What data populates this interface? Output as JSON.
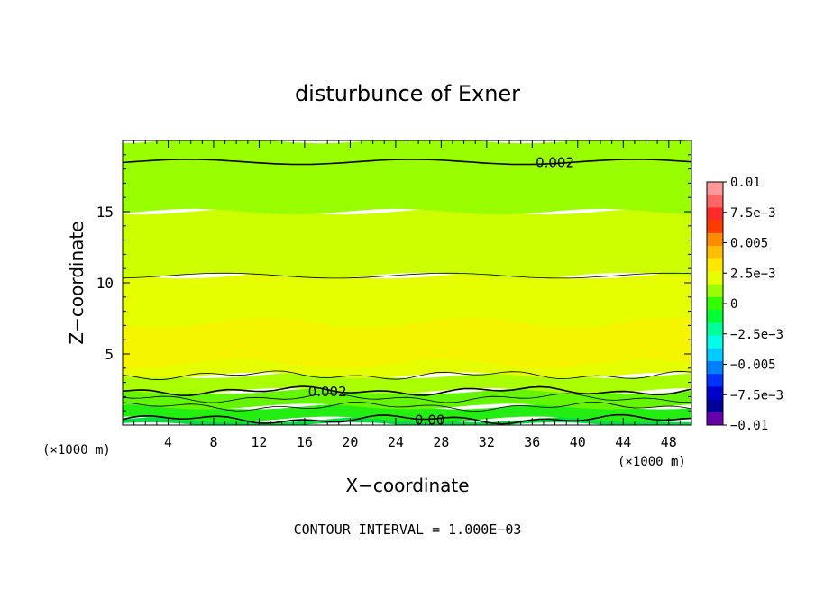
{
  "chart_data": {
    "type": "heatmap",
    "title": "disturbunce of Exner",
    "xlabel": "X−coordinate",
    "ylabel": "Z−coordinate",
    "x_unit": "(×1000 m)",
    "x_unit_right": "(×1000 m)",
    "footer": "CONTOUR INTERVAL = 1.000E−03",
    "xlim": [
      0,
      50
    ],
    "ylim": [
      0,
      20
    ],
    "x_ticks": [
      4,
      8,
      12,
      16,
      20,
      24,
      28,
      32,
      36,
      40,
      44,
      48
    ],
    "y_ticks": [
      5,
      10,
      15
    ],
    "grid": false,
    "colorbar": {
      "labels": [
        "0.01",
        "7.5e−3",
        "0.005",
        "2.5e−3",
        "0",
        "−2.5e−3",
        "−0.005",
        "−7.5e−3",
        "−0.01"
      ],
      "values": [
        0.01,
        0.0075,
        0.005,
        0.0025,
        0,
        -0.0025,
        -0.005,
        -0.0075,
        -0.01
      ],
      "colors": [
        "#ff9999",
        "#ff6666",
        "#ff2a2a",
        "#ff3b00",
        "#ff8c00",
        "#ffbf00",
        "#ffe600",
        "#e6ff00",
        "#99ff00",
        "#33ff00",
        "#00ff33",
        "#00ff99",
        "#00ffe6",
        "#00ccff",
        "#0080ff",
        "#0033ff",
        "#0000cc",
        "#000099",
        "#6600aa"
      ]
    },
    "contour_labels": [
      {
        "text": "0.002",
        "x": 38,
        "z": 18.5
      },
      {
        "text": "0.002",
        "x": 18,
        "z": 2.4
      },
      {
        "text": "0.00",
        "x": 27,
        "z": 0.4
      }
    ],
    "field_bands": [
      {
        "z_range": [
          0,
          0.4
        ],
        "value": -0.0005,
        "color": "#00dd44"
      },
      {
        "z_range": [
          0.4,
          1.3
        ],
        "value": 0.0,
        "color": "#22ee11"
      },
      {
        "z_range": [
          1.3,
          2.4
        ],
        "value": 0.0007,
        "color": "#66f500"
      },
      {
        "z_range": [
          2.4,
          3.5
        ],
        "value": 0.0015,
        "color": "#aaff00"
      },
      {
        "z_range": [
          3.5,
          10.5
        ],
        "value": 0.0028,
        "color": "#e6ff00"
      },
      {
        "z_range": [
          4.3,
          7.2
        ],
        "value": 0.0033,
        "color": "#f5f500"
      },
      {
        "z_range": [
          10.5,
          15
        ],
        "value": 0.0022,
        "color": "#ccff00"
      },
      {
        "z_range": [
          15,
          20
        ],
        "value": 0.0015,
        "color": "#99ff00"
      }
    ]
  }
}
